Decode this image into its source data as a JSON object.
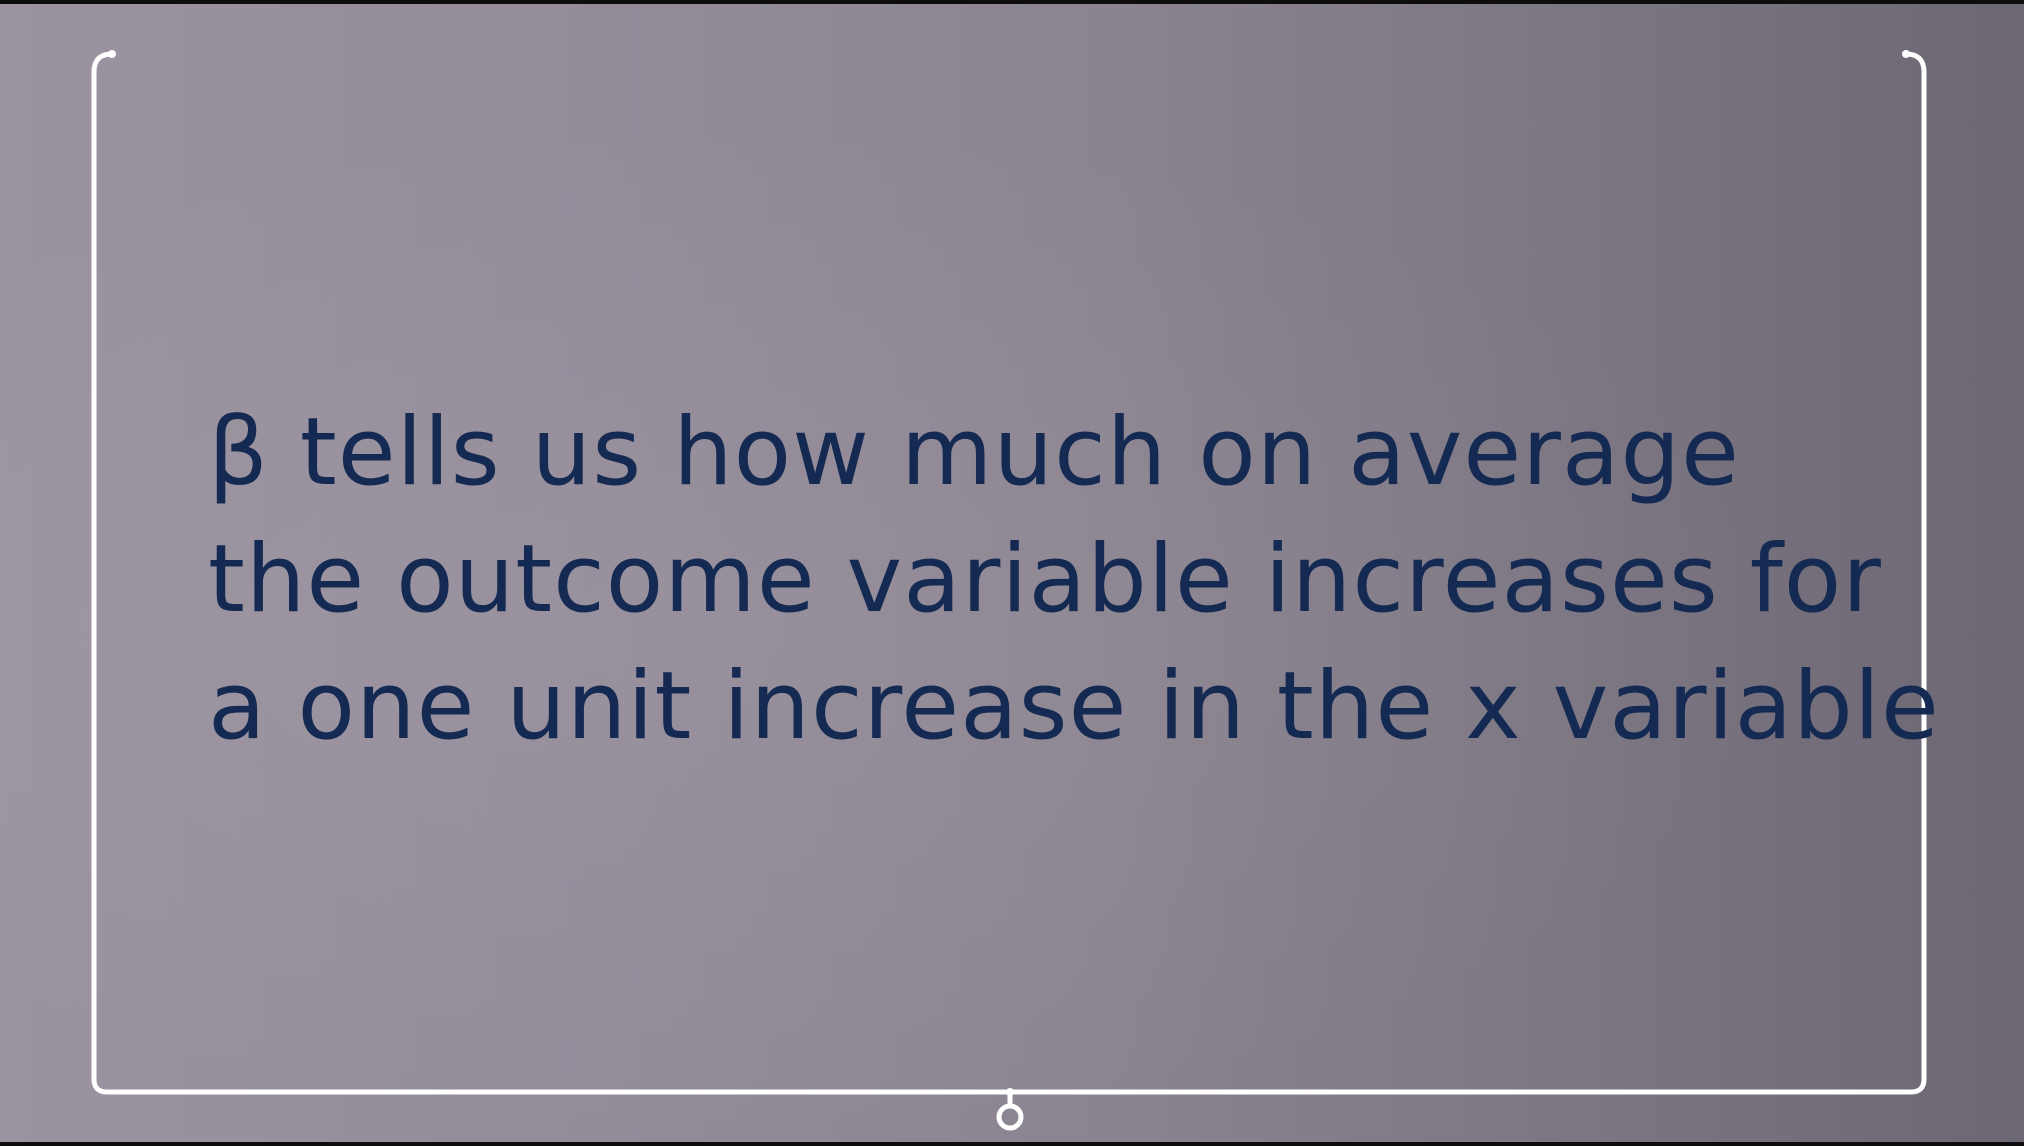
{
  "slide": {
    "lines": [
      "β tells us how much on average",
      "the outcome variable increases for",
      "a one unit increase in the x variable"
    ]
  },
  "colors": {
    "text": "#142a52",
    "frame": "#ffffff",
    "background_left": "#9b939f",
    "background_right": "#6c6772"
  },
  "icons": {
    "bottom_connector": "ring-connector-icon"
  }
}
